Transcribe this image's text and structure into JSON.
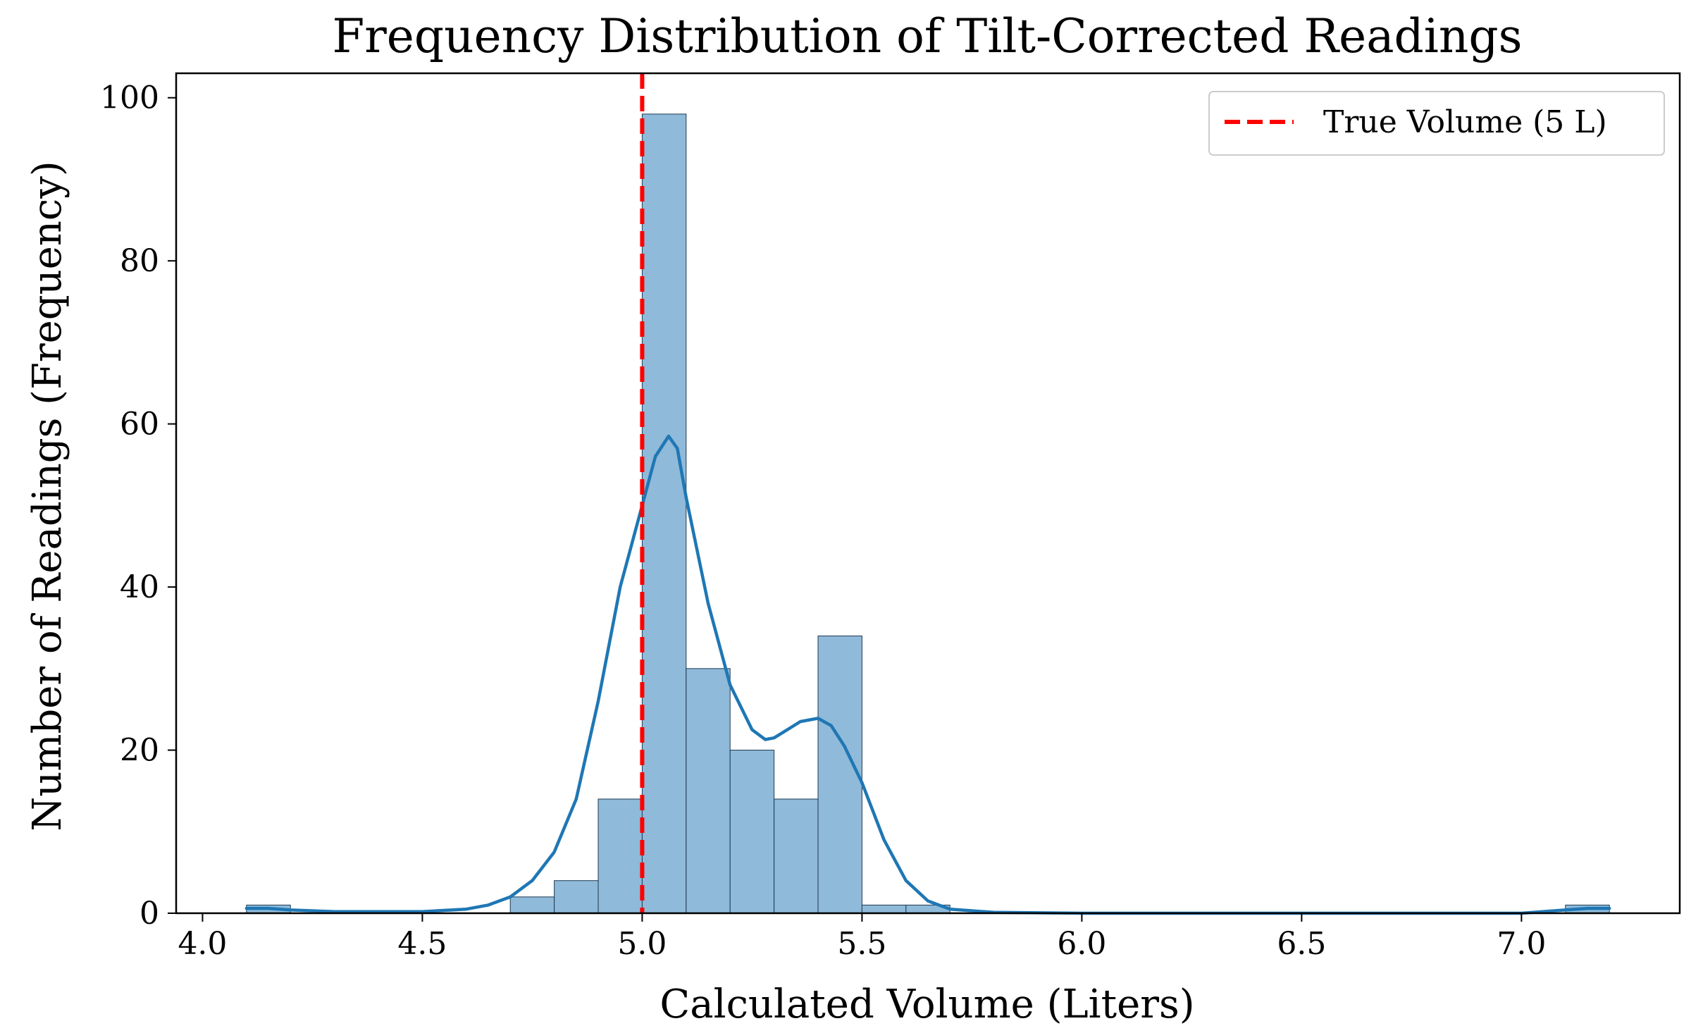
{
  "chart_data": {
    "type": "bar",
    "title": "Frequency Distribution of Tilt-Corrected Readings",
    "xlabel": "Calculated Volume (Liters)",
    "ylabel": "Number of Readings (Frequency)",
    "xlim": [
      3.94,
      7.36
    ],
    "ylim": [
      0,
      103
    ],
    "x_ticks": [
      4.0,
      4.5,
      5.0,
      5.5,
      6.0,
      6.5,
      7.0
    ],
    "x_tick_labels": [
      "4.0",
      "4.5",
      "5.0",
      "5.5",
      "6.0",
      "6.5",
      "7.0"
    ],
    "y_ticks": [
      0,
      20,
      40,
      60,
      80,
      100
    ],
    "y_tick_labels": [
      "0",
      "20",
      "40",
      "60",
      "80",
      "100"
    ],
    "grid": false,
    "legend_position": "top-right",
    "colors": {
      "bar_fill": "#8fbad9",
      "bar_edge": "#1f3a52",
      "kde": "#1f77b4",
      "reference": "#ff0000"
    },
    "histogram": {
      "bin_width": 0.1,
      "bins": [
        {
          "start": 4.1,
          "count": 1
        },
        {
          "start": 4.7,
          "count": 2
        },
        {
          "start": 4.8,
          "count": 4
        },
        {
          "start": 4.9,
          "count": 14
        },
        {
          "start": 5.0,
          "count": 98
        },
        {
          "start": 5.1,
          "count": 30
        },
        {
          "start": 5.2,
          "count": 20
        },
        {
          "start": 5.3,
          "count": 14
        },
        {
          "start": 5.4,
          "count": 34
        },
        {
          "start": 5.5,
          "count": 1
        },
        {
          "start": 5.6,
          "count": 1
        },
        {
          "start": 7.1,
          "count": 1
        }
      ]
    },
    "kde_curve": {
      "x": [
        4.1,
        4.15,
        4.2,
        4.3,
        4.4,
        4.5,
        4.6,
        4.65,
        4.7,
        4.75,
        4.8,
        4.85,
        4.9,
        4.95,
        5.0,
        5.03,
        5.06,
        5.08,
        5.1,
        5.15,
        5.2,
        5.25,
        5.28,
        5.3,
        5.33,
        5.36,
        5.4,
        5.43,
        5.46,
        5.5,
        5.55,
        5.6,
        5.65,
        5.7,
        5.8,
        6.0,
        6.5,
        7.0,
        7.1,
        7.15,
        7.2
      ],
      "y": [
        0.6,
        0.6,
        0.4,
        0.2,
        0.2,
        0.2,
        0.5,
        1.0,
        2.0,
        4.0,
        7.5,
        14.0,
        26.0,
        40.0,
        50.0,
        56.0,
        58.5,
        57.0,
        51.0,
        38.0,
        28.0,
        22.5,
        21.3,
        21.5,
        22.5,
        23.5,
        23.9,
        23.0,
        20.5,
        16.0,
        9.0,
        4.0,
        1.5,
        0.5,
        0.1,
        0.0,
        0.0,
        0.0,
        0.4,
        0.6,
        0.6
      ]
    },
    "reference_line": {
      "x": 5.0,
      "label": "True Volume (5 L)"
    }
  }
}
